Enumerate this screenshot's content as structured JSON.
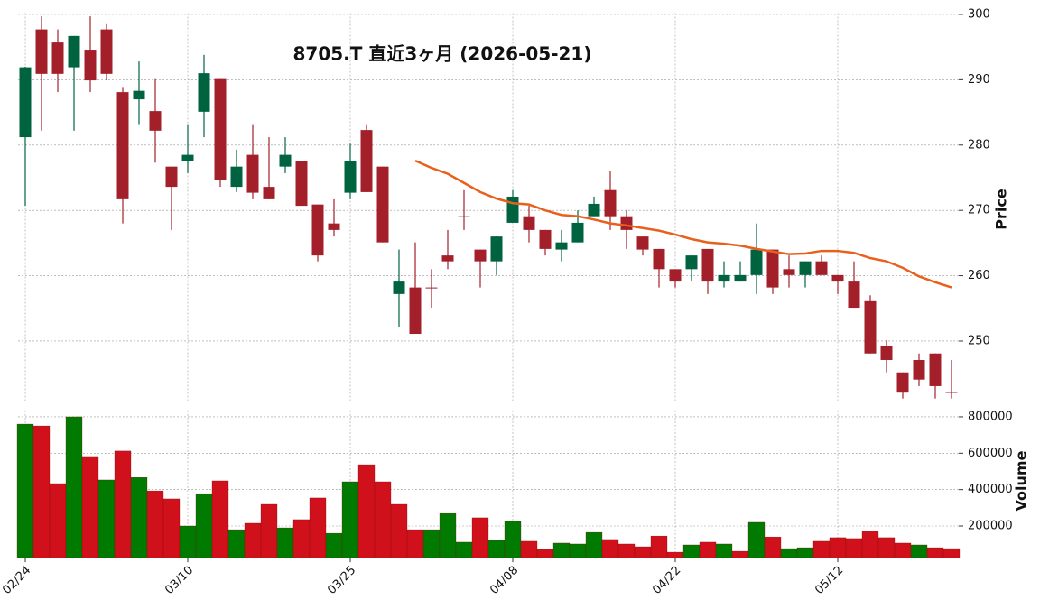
{
  "chart_data": [
    {
      "type": "candlestick",
      "title": "8705.T  直近3ヶ月 (2026-05-21)",
      "ylabel": "Price",
      "open": [
        281.2,
        297.7,
        295.7,
        291.9,
        294.6,
        297.7,
        288.1,
        287.0,
        285.2,
        276.7,
        277.5,
        285.1,
        290.1,
        273.6,
        278.5,
        273.6,
        276.7,
        277.6,
        270.9,
        268.0,
        272.7,
        282.3,
        276.7,
        257.2,
        258.2,
        258.2,
        263.1,
        269.1,
        264.0,
        262.2,
        268.1,
        269.1,
        267.0,
        264.0,
        265.1,
        269.1,
        273.1,
        269.1,
        266.0,
        264.1,
        261.0,
        261.0,
        264.1,
        259.1,
        259.1,
        260.1,
        264.0,
        261.0,
        260.1,
        262.2,
        260.1,
        259.1,
        256.1,
        249.2,
        245.2,
        247.1,
        248.1,
        242.2
      ],
      "high": [
        292.0,
        299.7,
        297.7,
        296.7,
        299.7,
        298.5,
        288.9,
        292.8,
        290.1,
        276.7,
        283.2,
        293.8,
        290.1,
        279.3,
        283.2,
        281.2,
        281.2,
        277.6,
        270.9,
        271.7,
        280.2,
        283.2,
        276.7,
        264.0,
        265.1,
        261.0,
        267.0,
        273.1,
        264.0,
        266.0,
        273.1,
        270.7,
        267.0,
        267.0,
        270.0,
        272.1,
        276.1,
        270.0,
        266.0,
        264.1,
        261.0,
        263.1,
        264.1,
        262.2,
        262.2,
        268.0,
        264.0,
        263.1,
        262.2,
        263.1,
        260.1,
        262.2,
        257.0,
        250.1,
        245.2,
        248.1,
        248.1,
        247.1
      ],
      "low": [
        270.7,
        282.2,
        288.1,
        282.2,
        288.1,
        289.9,
        268.0,
        283.2,
        277.3,
        267.0,
        275.7,
        281.2,
        273.6,
        272.8,
        271.7,
        271.7,
        275.7,
        270.7,
        262.2,
        266.0,
        271.7,
        272.8,
        265.1,
        252.2,
        251.1,
        255.1,
        261.0,
        267.0,
        258.2,
        260.1,
        268.1,
        265.1,
        263.1,
        262.2,
        265.1,
        269.1,
        267.0,
        264.1,
        263.1,
        258.2,
        258.2,
        259.1,
        257.2,
        258.2,
        259.1,
        257.2,
        257.2,
        258.2,
        258.2,
        260.1,
        257.2,
        255.1,
        248.1,
        245.2,
        241.2,
        243.1,
        241.2,
        241.2
      ],
      "close": [
        291.9,
        290.9,
        290.9,
        296.7,
        289.9,
        290.9,
        271.7,
        288.3,
        282.2,
        273.6,
        278.5,
        291.0,
        274.6,
        276.7,
        272.7,
        271.7,
        278.5,
        270.7,
        263.1,
        267.0,
        277.6,
        272.8,
        265.1,
        259.1,
        251.1,
        258.1,
        262.2,
        269.0,
        262.2,
        266.0,
        272.1,
        267.0,
        264.1,
        265.1,
        268.1,
        271.0,
        269.1,
        267.0,
        264.0,
        261.0,
        259.1,
        263.1,
        259.1,
        260.1,
        260.1,
        264.0,
        258.2,
        260.1,
        262.2,
        260.1,
        259.1,
        255.1,
        248.1,
        247.1,
        242.1,
        244.1,
        243.1,
        242.1
      ],
      "up_color": "#006340",
      "down_color": "#a3202a",
      "line": {
        "color": "#e8601c",
        "values": [
          null,
          null,
          null,
          null,
          null,
          null,
          null,
          null,
          null,
          null,
          null,
          null,
          null,
          null,
          null,
          null,
          null,
          null,
          null,
          null,
          null,
          null,
          null,
          null,
          277.6,
          276.5,
          275.6,
          274.2,
          272.8,
          271.8,
          271.1,
          270.9,
          270.0,
          269.3,
          269.1,
          268.6,
          268.0,
          267.7,
          267.3,
          266.9,
          266.3,
          265.6,
          265.1,
          264.9,
          264.6,
          264.1,
          263.7,
          263.3,
          263.4,
          263.8,
          263.8,
          263.5,
          262.7,
          262.2,
          261.2,
          259.9,
          259.0,
          258.2
        ]
      },
      "ylim": [
        240.8,
        300.2
      ],
      "yticks": [
        250,
        260,
        270,
        280,
        290,
        300
      ],
      "grid": true
    },
    {
      "type": "bar",
      "ylabel": "Volume",
      "categories": [
        "02/24",
        null,
        null,
        null,
        null,
        null,
        null,
        null,
        null,
        null,
        "03/10",
        null,
        null,
        null,
        null,
        null,
        null,
        null,
        null,
        null,
        "03/25",
        null,
        null,
        null,
        null,
        null,
        null,
        null,
        null,
        null,
        "04/08",
        null,
        null,
        null,
        null,
        null,
        null,
        null,
        null,
        null,
        "04/22",
        null,
        null,
        null,
        null,
        null,
        null,
        null,
        null,
        null,
        "05/12",
        null,
        null,
        null,
        null,
        null,
        null,
        null
      ],
      "values": [
        760000,
        750000,
        433000,
        800000,
        582000,
        453000,
        612000,
        467000,
        393000,
        349000,
        200000,
        378000,
        448000,
        180000,
        215000,
        319000,
        190000,
        235000,
        354000,
        160000,
        443000,
        537000,
        443000,
        319000,
        180000,
        180000,
        269000,
        111000,
        245000,
        121000,
        225000,
        116000,
        71000,
        106000,
        101000,
        165000,
        126000,
        101000,
        86000,
        145000,
        56000,
        96000,
        111000,
        101000,
        61000,
        220000,
        140000,
        76000,
        81000,
        116000,
        136000,
        131000,
        170000,
        136000,
        106000,
        96000,
        81000,
        76000
      ],
      "colors": [
        "#007a00",
        "#d0101a",
        "#d0101a",
        "#007a00",
        "#d0101a",
        "#007a00",
        "#d0101a",
        "#007a00",
        "#d0101a",
        "#d0101a",
        "#007a00",
        "#007a00",
        "#d0101a",
        "#007a00",
        "#d0101a",
        "#d0101a",
        "#007a00",
        "#d0101a",
        "#d0101a",
        "#007a00",
        "#007a00",
        "#d0101a",
        "#d0101a",
        "#d0101a",
        "#d0101a",
        "#007a00",
        "#007a00",
        "#007a00",
        "#d0101a",
        "#007a00",
        "#007a00",
        "#d0101a",
        "#d0101a",
        "#007a00",
        "#007a00",
        "#007a00",
        "#d0101a",
        "#d0101a",
        "#d0101a",
        "#d0101a",
        "#d0101a",
        "#007a00",
        "#d0101a",
        "#007a00",
        "#d0101a",
        "#007a00",
        "#d0101a",
        "#007a00",
        "#007a00",
        "#d0101a",
        "#d0101a",
        "#d0101a",
        "#d0101a",
        "#d0101a",
        "#d0101a",
        "#007a00",
        "#d0101a",
        "#d0101a"
      ],
      "ylim": [
        26000,
        835000
      ],
      "yticks": [
        200000,
        400000,
        600000,
        800000
      ],
      "grid": true
    }
  ]
}
